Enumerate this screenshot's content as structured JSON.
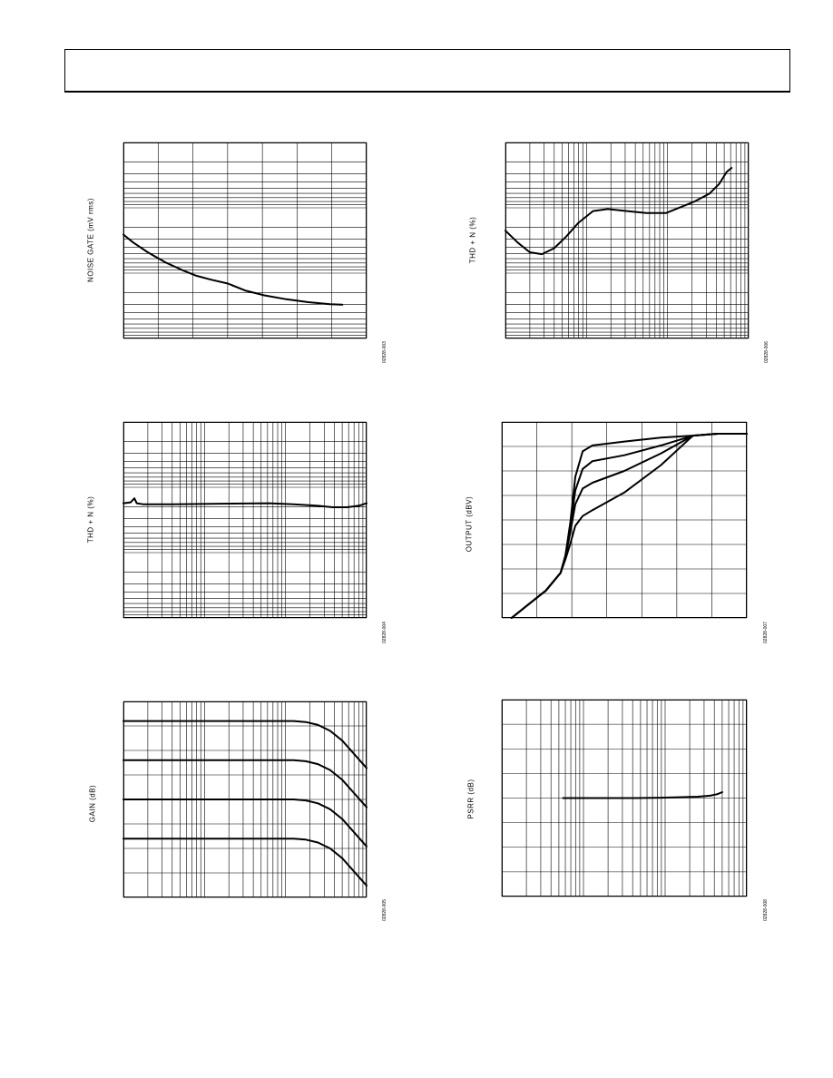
{
  "page": {},
  "colors": {
    "ink": "#000000",
    "paper": "#ffffff"
  },
  "chart_data": [
    {
      "id": "noise-gate",
      "type": "line",
      "ylabel": "NOISE GATE (mV rms)",
      "figure_code": "02828-003",
      "x_scale": "linear",
      "y_scale": "log",
      "xlim": [
        0,
        1
      ],
      "ylim": [
        0,
        1
      ],
      "series": [
        {
          "values_x": [
            0.0,
            0.04,
            0.1,
            0.17,
            0.24,
            0.3,
            0.36,
            0.43,
            0.5,
            0.58,
            0.67,
            0.76,
            0.85,
            0.9
          ],
          "values_y": [
            0.53,
            0.49,
            0.44,
            0.39,
            0.35,
            0.32,
            0.3,
            0.28,
            0.245,
            0.22,
            0.2,
            0.185,
            0.175,
            0.172
          ]
        }
      ]
    },
    {
      "id": "thd-vs-power",
      "type": "line",
      "ylabel": "THD + N (%)",
      "figure_code": "02828-006",
      "x_scale": "log",
      "y_scale": "log",
      "xlim": [
        0,
        1
      ],
      "ylim": [
        0,
        1
      ],
      "series": [
        {
          "values_x": [
            0.0,
            0.05,
            0.1,
            0.15,
            0.2,
            0.25,
            0.3,
            0.36,
            0.42,
            0.5,
            0.58,
            0.66,
            0.72,
            0.78,
            0.84,
            0.88,
            0.91,
            0.93
          ],
          "values_y": [
            0.55,
            0.49,
            0.44,
            0.43,
            0.46,
            0.52,
            0.59,
            0.65,
            0.66,
            0.65,
            0.64,
            0.64,
            0.67,
            0.7,
            0.74,
            0.79,
            0.85,
            0.87
          ]
        }
      ]
    },
    {
      "id": "thd-vs-frequency",
      "type": "line",
      "ylabel": "THD + N (%)",
      "figure_code": "02828-004",
      "x_scale": "log",
      "y_scale": "log",
      "xlim": [
        0,
        1
      ],
      "ylim": [
        0,
        1
      ],
      "series": [
        {
          "values_x": [
            0.0,
            0.03,
            0.045,
            0.055,
            0.08,
            0.2,
            0.4,
            0.6,
            0.7,
            0.8,
            0.86,
            0.92,
            0.97,
            1.0
          ],
          "values_y": [
            0.585,
            0.59,
            0.61,
            0.585,
            0.58,
            0.58,
            0.583,
            0.585,
            0.58,
            0.572,
            0.565,
            0.565,
            0.573,
            0.585
          ]
        }
      ]
    },
    {
      "id": "output-vs-input",
      "type": "line",
      "ylabel": "OUTPUT (dBV)",
      "figure_code": "02828-007",
      "x_scale": "linear",
      "y_scale": "linear",
      "xlim": [
        0,
        1
      ],
      "ylim": [
        0,
        1
      ],
      "series": [
        {
          "values_x": [
            0.04,
            0.1,
            0.18,
            0.24,
            0.26,
            0.28,
            0.3,
            0.33,
            0.37,
            0.5,
            0.65,
            0.78,
            0.88,
            1.0
          ],
          "values_y": [
            0.0,
            0.06,
            0.14,
            0.23,
            0.32,
            0.49,
            0.72,
            0.85,
            0.88,
            0.9,
            0.92,
            0.93,
            0.94,
            0.94
          ]
        },
        {
          "values_x": [
            0.04,
            0.1,
            0.18,
            0.24,
            0.26,
            0.28,
            0.3,
            0.33,
            0.37,
            0.5,
            0.65,
            0.78,
            0.88,
            1.0
          ],
          "values_y": [
            0.0,
            0.06,
            0.14,
            0.23,
            0.32,
            0.47,
            0.65,
            0.76,
            0.8,
            0.83,
            0.88,
            0.93,
            0.94,
            0.94
          ]
        },
        {
          "values_x": [
            0.04,
            0.1,
            0.18,
            0.24,
            0.26,
            0.28,
            0.3,
            0.33,
            0.37,
            0.5,
            0.65,
            0.78,
            0.88,
            1.0
          ],
          "values_y": [
            0.0,
            0.06,
            0.14,
            0.23,
            0.31,
            0.44,
            0.58,
            0.66,
            0.69,
            0.75,
            0.84,
            0.93,
            0.94,
            0.94
          ]
        },
        {
          "values_x": [
            0.04,
            0.1,
            0.18,
            0.24,
            0.26,
            0.28,
            0.3,
            0.33,
            0.37,
            0.5,
            0.65,
            0.78,
            0.88,
            1.0
          ],
          "values_y": [
            0.0,
            0.06,
            0.14,
            0.23,
            0.3,
            0.38,
            0.47,
            0.52,
            0.55,
            0.64,
            0.78,
            0.93,
            0.94,
            0.94
          ]
        }
      ]
    },
    {
      "id": "gain-vs-frequency",
      "type": "line",
      "ylabel": "GAIN (dB)",
      "figure_code": "02828-005",
      "x_scale": "log",
      "y_scale": "linear",
      "xlim": [
        0,
        1
      ],
      "ylim": [
        0,
        1
      ],
      "series": [
        {
          "values_x": [
            0.0,
            0.5,
            0.7,
            0.75,
            0.8,
            0.85,
            0.9,
            0.95,
            1.0
          ],
          "values_y": [
            0.9,
            0.9,
            0.9,
            0.895,
            0.88,
            0.85,
            0.8,
            0.73,
            0.66
          ]
        },
        {
          "values_x": [
            0.0,
            0.5,
            0.7,
            0.75,
            0.8,
            0.85,
            0.9,
            0.95,
            1.0
          ],
          "values_y": [
            0.7,
            0.7,
            0.7,
            0.695,
            0.68,
            0.65,
            0.6,
            0.53,
            0.46
          ]
        },
        {
          "values_x": [
            0.0,
            0.5,
            0.7,
            0.75,
            0.8,
            0.85,
            0.9,
            0.95,
            1.0
          ],
          "values_y": [
            0.5,
            0.5,
            0.5,
            0.495,
            0.48,
            0.45,
            0.4,
            0.33,
            0.26
          ]
        },
        {
          "values_x": [
            0.0,
            0.5,
            0.7,
            0.75,
            0.8,
            0.85,
            0.9,
            0.95,
            1.0
          ],
          "values_y": [
            0.3,
            0.3,
            0.3,
            0.295,
            0.28,
            0.25,
            0.2,
            0.13,
            0.06
          ]
        }
      ]
    },
    {
      "id": "psrr-vs-frequency",
      "type": "line",
      "ylabel": "PSRR (dB)",
      "figure_code": "02828-008",
      "x_scale": "log",
      "y_scale": "linear",
      "xlim": [
        0,
        1
      ],
      "ylim": [
        0,
        1
      ],
      "series": [
        {
          "values_x": [
            0.25,
            0.35,
            0.45,
            0.55,
            0.65,
            0.75,
            0.8,
            0.85,
            0.88,
            0.9
          ],
          "values_y": [
            0.5,
            0.5,
            0.5,
            0.5,
            0.502,
            0.505,
            0.507,
            0.512,
            0.52,
            0.53
          ]
        }
      ]
    }
  ]
}
